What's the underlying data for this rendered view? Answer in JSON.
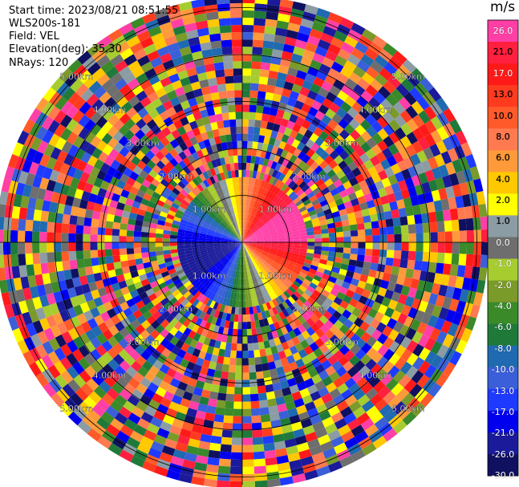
{
  "header": {
    "start_time": "Start time: 2023/08/21 08:51:55",
    "instrument": "WLS200s-181",
    "field": "Field: VEL",
    "elevation": "Elevation(deg): 35.30",
    "nrays": "NRays: 120"
  },
  "chart_data": {
    "type": "ppi",
    "field": "VEL",
    "units": "m/s",
    "nrays": 120,
    "elevation_deg": 35.3,
    "range_rings_km": [
      1.0,
      2.0,
      3.0,
      4.0,
      5.0
    ],
    "ring_labels": [
      "1.00km",
      "2.00km",
      "3.00km",
      "4.00km",
      "5.00km"
    ],
    "max_range_km": 5.25,
    "colorbar": {
      "ticks": [
        "26.0",
        "21.0",
        "17.0",
        "13.0",
        "10.0",
        "8.0",
        "6.0",
        "4.0",
        "2.0",
        "1.0",
        "0.0",
        "-1.0",
        "-2.0",
        "-4.0",
        "-6.0",
        "-8.0",
        "-10.0",
        "-13.0",
        "-17.0",
        "-21.0",
        "-26.0",
        "-30.0"
      ],
      "colors": [
        "#ff3fa6",
        "#ff1f3f",
        "#ff1a1a",
        "#ff3b1f",
        "#ff5a2a",
        "#ff7a50",
        "#ff9a3a",
        "#ffc800",
        "#ffff00",
        "#8c9ca4",
        "#6e6e6e",
        "#a6cc2f",
        "#7a9a2a",
        "#3a8a2a",
        "#1f7a3a",
        "#1f6ab0",
        "#3a5fd8",
        "#1f3aff",
        "#0000ee",
        "#1a1a9a",
        "#101060"
      ]
    }
  }
}
